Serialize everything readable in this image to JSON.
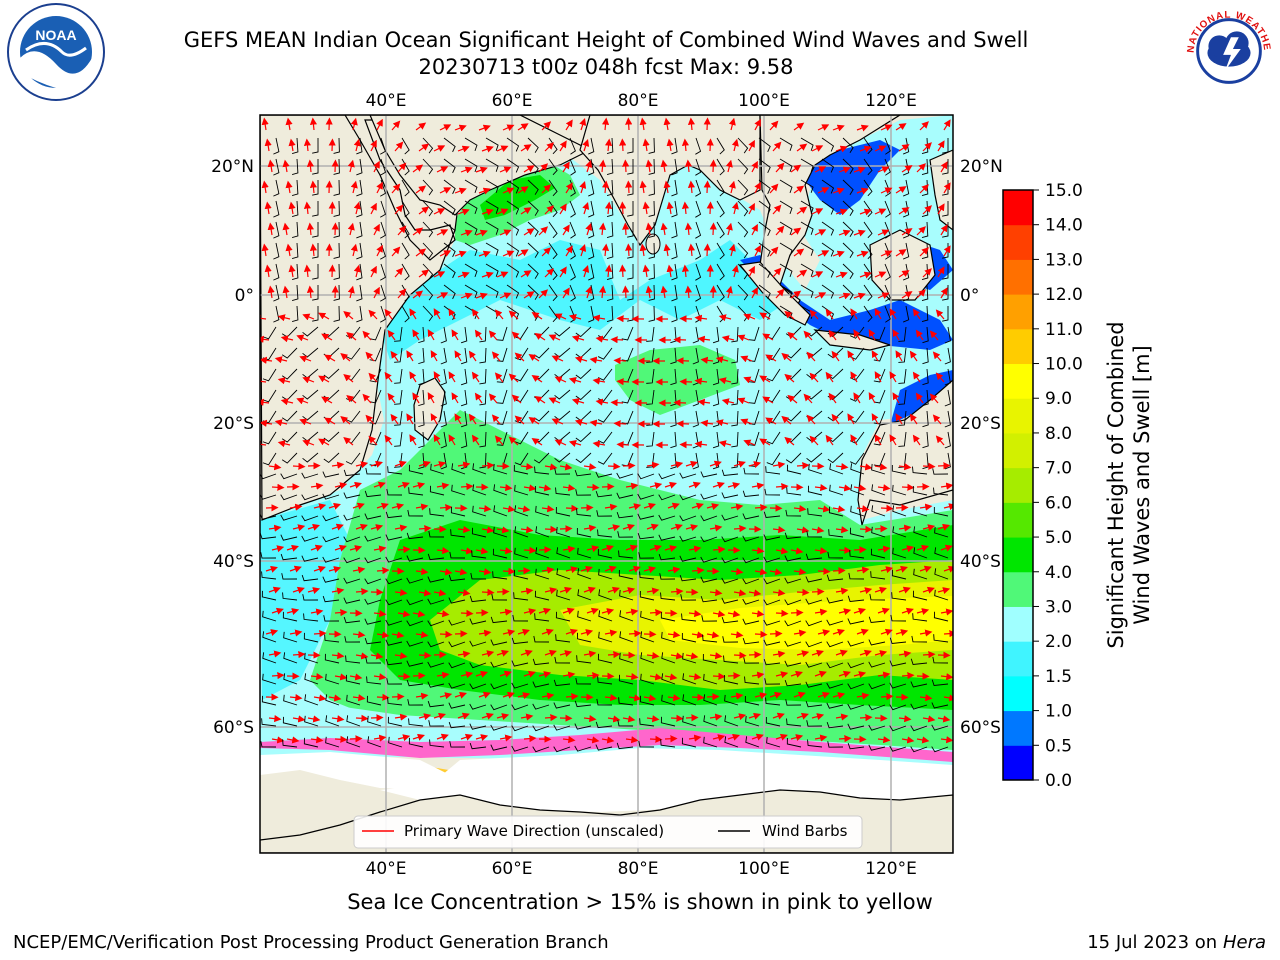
{
  "header": {
    "title_line1": "GEFS MEAN Indian Ocean Significant Height of Combined Wind Waves and Swell",
    "title_line2": "20230713 t00z 048h fcst   Max: 9.58"
  },
  "logos": {
    "left": {
      "icon": "noaa-logo-icon",
      "text": "NOAA"
    },
    "right": {
      "icon": "nws-logo-icon",
      "text": "NATIONAL WEATHER SERVICE"
    }
  },
  "map": {
    "top_lon_labels": [
      "40°E",
      "60°E",
      "80°E",
      "100°E",
      "120°E"
    ],
    "bottom_lon_labels": [
      "40°E",
      "60°E",
      "80°E",
      "100°E",
      "120°E"
    ],
    "left_lat_labels": [
      "20°N",
      "0°",
      "20°S",
      "40°S",
      "60°S"
    ],
    "right_lat_labels": [
      "20°N",
      "0°",
      "20°S",
      "40°S",
      "60°S"
    ],
    "colors": {
      "land": "#efecdc",
      "coast": "#000000",
      "grid": "#b0b0b0",
      "wave_arrow": "#ff0000",
      "barb": "#000000"
    }
  },
  "legend": {
    "wave_label": "Primary Wave Direction (unscaled)",
    "barb_label": "Wind Barbs"
  },
  "colorbar": {
    "title_line1": "Significant Height of Combined",
    "title_line2": "Wind Waves and Swell [m]",
    "ticks": [
      "0.0",
      "0.5",
      "1.0",
      "1.5",
      "2.0",
      "3.0",
      "4.0",
      "5.0",
      "6.0",
      "7.0",
      "8.0",
      "9.0",
      "10.0",
      "11.0",
      "12.0",
      "13.0",
      "14.0",
      "15.0"
    ],
    "colors": [
      "#0000ff",
      "#0078ff",
      "#00ffff",
      "#40f4ff",
      "#a0ffff",
      "#50f878",
      "#00e600",
      "#55e800",
      "#a6ec00",
      "#d2f000",
      "#e8f400",
      "#ffff00",
      "#ffcc00",
      "#ffa000",
      "#ff7000",
      "#ff4000",
      "#ff0000"
    ]
  },
  "footer": {
    "subtitle": "Sea Ice Concentration > 15% is shown in pink to yellow",
    "left": "NCEP/EMC/Verification Post Processing Product Generation Branch",
    "right_date": "15 Jul 2023 on ",
    "right_host": "Hera"
  }
}
